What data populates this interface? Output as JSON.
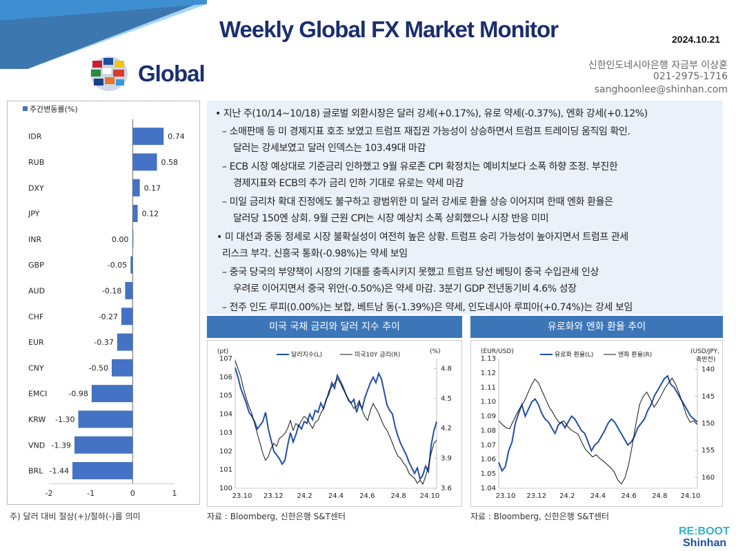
{
  "header": {
    "title": "Weekly Global FX Market Monitor",
    "date": "2024.10.21",
    "region": "Global",
    "contact_name": "신한인도네시아은행 자금부 이상훈",
    "contact_phone": "021-2975-1716",
    "contact_email": "sanghoonlee@shinhan.com"
  },
  "colors": {
    "navy": "#1a2e6e",
    "bar": "#4472c4",
    "header_bar": "#3d76b8",
    "line_blue": "#1f4fa8",
    "line_black": "#111111"
  },
  "commentary": [
    "• 지난 주(10/14~10/18) 글로벌 외환시장은 달러 강세(+0.17%), 유로 약세(-0.37%), 엔화 강세(+0.12%)",
    "– 소매판매 등 미 경제지표 호조 보였고 트럼프 재집권 가능성이 상승하면서 트럼프 트레이딩 움직임 확인.",
    "달러는 강세보였고 달러 인덱스는 103.49대 마감",
    "– ECB 시장 예상대로 기준금리 인하했고 9월 유로존 CPI 확정치는 예비치보다 소폭 하향 조정. 부진한",
    "경제지표와 ECB의 추가 금리 인하 기대로 유로는 약세 마감",
    "– 미일 금리차 확대 진정에도 불구하고 광범위한 미 달러 강세로 환율 상승 이어지며 한때 엔화 환율은",
    "달러당 150엔 상회. 9월 근원 CPI는 시장 예상치 소폭 상회했으나 시장 반응 미미",
    "• 미 대선과 중동 정세로 시장 불확실성이 여전히 높은 상황. 트럼프 승리 가능성이 높아지면서 트럼프 관세",
    "리스크 부각. 신흥국 통화(-0.98%)는 약세 보임",
    "– 중국 당국의 부양책이 시장의 기대를 충족시키지 못했고 트럼프 당선 베팅이 중국 수입관세 인상",
    "우려로 이어지면서 중국 위안(-0.50%)은 약세 마감. 3분기 GDP 전년동기비 4.6% 성장",
    "– 전주 인도 루피(0.00%)는 보합, 베트남 동(-1.39%)은 약세, 인도네시아 루피아(+0.74%)는 강세 보임"
  ],
  "note": "주) 달러 대비 절상(+)/절하(-)를 의미",
  "chart_data": [
    {
      "type": "bar",
      "orientation": "horizontal",
      "legend": "주간변동률(%)",
      "categories": [
        "IDR",
        "RUB",
        "DXY",
        "JPY",
        "INR",
        "GBP",
        "AUD",
        "CHF",
        "EUR",
        "CNY",
        "EMCI",
        "KRW",
        "VND",
        "BRL"
      ],
      "values": [
        0.74,
        0.58,
        0.17,
        0.12,
        0.0,
        -0.05,
        -0.18,
        -0.27,
        -0.37,
        -0.5,
        -0.98,
        -1.3,
        -1.39,
        -1.44
      ],
      "value_labels": [
        "0.74",
        "0.58",
        "0.17",
        "0.12",
        "0.00",
        "-0.05",
        "-0.18",
        "-0.27",
        "-0.37",
        "-0.50",
        "-0.98",
        "-1.30",
        "-1.39",
        "-1.44"
      ],
      "xlim": [
        -2,
        1
      ],
      "xticks": [
        "-2",
        "-1",
        "0",
        "1"
      ]
    },
    {
      "type": "line",
      "title": "미국 국채 금리와 달러 지수 추이",
      "source": "자료 : Bloomberg, 신한은행 S&T센터",
      "left_unit": "(pt)",
      "right_unit": "(%)",
      "x_ticks": [
        "23.10",
        "23.12",
        "24.2",
        "24.4",
        "24.6",
        "24.8",
        "24.10"
      ],
      "left_ticks": [
        "100",
        "101",
        "102",
        "103",
        "104",
        "105",
        "106",
        "107"
      ],
      "right_ticks": [
        "3.6",
        "3.9",
        "4.2",
        "4.5",
        "4.8"
      ],
      "ylim_left": [
        100,
        107
      ],
      "ylim_right": [
        3.6,
        4.9
      ],
      "series": [
        {
          "name": "달러지수(L)",
          "axis": "left",
          "values": [
            106.5,
            106.0,
            105.4,
            105.0,
            104.6,
            104.1,
            103.9,
            103.6,
            103.2,
            103.4,
            103.6,
            104.1,
            103.2,
            102.6,
            102.0,
            101.8,
            101.6,
            101.3,
            101.5,
            102.3,
            103.0,
            102.5,
            102.9,
            103.4,
            103.2,
            103.6,
            103.5,
            104.0,
            103.7,
            104.2,
            104.1,
            104.6,
            104.3,
            104.8,
            105.1,
            105.7,
            105.4,
            106.1,
            105.8,
            105.5,
            105.1,
            104.8,
            104.6,
            104.8,
            104.1,
            104.6,
            104.3,
            104.9,
            105.3,
            105.7,
            106.0,
            105.7,
            106.2,
            105.9,
            105.2,
            104.5,
            104.2,
            104.0,
            103.3,
            102.8,
            102.4,
            102.1,
            101.8,
            101.4,
            101.1,
            100.8,
            101.1,
            100.5,
            100.7,
            101.2,
            100.9,
            102.3,
            103.1,
            103.6
          ]
        },
        {
          "name": "미국10Y 금리(R)",
          "axis": "right",
          "values": [
            4.88,
            4.8,
            4.72,
            4.6,
            4.5,
            4.42,
            4.35,
            4.25,
            4.15,
            4.05,
            3.95,
            3.88,
            3.92,
            4.0,
            4.05,
            4.02,
            4.1,
            4.12,
            4.15,
            4.2,
            4.28,
            4.18,
            4.25,
            4.22,
            4.28,
            4.32,
            4.3,
            4.25,
            4.2,
            4.26,
            4.28,
            4.35,
            4.4,
            4.48,
            4.58,
            4.62,
            4.65,
            4.7,
            4.66,
            4.6,
            4.55,
            4.48,
            4.45,
            4.4,
            4.42,
            4.48,
            4.38,
            4.32,
            4.28,
            4.38,
            4.45,
            4.4,
            4.35,
            4.28,
            4.22,
            4.18,
            4.12,
            4.05,
            3.98,
            3.92,
            3.9,
            3.85,
            3.82,
            3.75,
            3.72,
            3.7,
            3.65,
            3.68,
            3.64,
            3.72,
            3.82,
            3.95,
            4.05,
            4.08
          ]
        }
      ]
    },
    {
      "type": "line",
      "title": "유로화와 엔화 환율 추이",
      "source": "자료 : Bloomberg, 신한은행 S&T센터",
      "left_unit": "(EUR/USD)",
      "right_unit": "(USD/JPY,",
      "right_unit_note": "축반전)",
      "x_ticks": [
        "23.10",
        "23.12",
        "24.2",
        "24.4",
        "24.6",
        "24.8",
        "24.10"
      ],
      "left_ticks": [
        "1.04",
        "1.05",
        "1.06",
        "1.07",
        "1.08",
        "1.09",
        "1.10",
        "1.11",
        "1.12",
        "1.13"
      ],
      "right_ticks": [
        "140",
        "145",
        "150",
        "155",
        "160"
      ],
      "ylim_left": [
        1.04,
        1.13
      ],
      "ylim_right": [
        162,
        138
      ],
      "series": [
        {
          "name": "유로화 환율(L)",
          "axis": "left",
          "values": [
            1.058,
            1.052,
            1.055,
            1.066,
            1.072,
            1.085,
            1.092,
            1.098,
            1.09,
            1.095,
            1.1,
            1.102,
            1.098,
            1.092,
            1.088,
            1.086,
            1.082,
            1.078,
            1.084,
            1.086,
            1.082,
            1.086,
            1.09,
            1.088,
            1.084,
            1.08,
            1.078,
            1.072,
            1.066,
            1.07,
            1.072,
            1.076,
            1.08,
            1.085,
            1.088,
            1.086,
            1.082,
            1.078,
            1.074,
            1.07,
            1.072,
            1.076,
            1.082,
            1.085,
            1.088,
            1.094,
            1.098,
            1.104,
            1.108,
            1.112,
            1.116,
            1.118,
            1.112,
            1.11,
            1.106,
            1.102,
            1.098,
            1.094,
            1.09,
            1.088,
            1.086
          ]
        },
        {
          "name": "엔화 환율(R)",
          "axis": "right",
          "values": [
            149.5,
            150.2,
            150.8,
            151.0,
            149.6,
            148.2,
            147.0,
            146.0,
            144.5,
            143.0,
            141.8,
            142.5,
            144.0,
            145.5,
            147.0,
            148.0,
            149.2,
            150.0,
            149.5,
            150.5,
            151.2,
            151.6,
            152.0,
            153.5,
            154.8,
            155.5,
            156.2,
            155.8,
            156.5,
            157.0,
            157.6,
            158.2,
            159.0,
            160.5,
            161.2,
            160.0,
            157.5,
            154.0,
            150.0,
            146.5,
            145.0,
            144.2,
            145.5,
            147.0,
            146.0,
            144.8,
            143.5,
            142.5,
            141.6,
            142.8,
            144.5,
            146.5,
            148.5,
            149.8,
            149.5,
            150.2
          ]
        }
      ]
    }
  ]
}
